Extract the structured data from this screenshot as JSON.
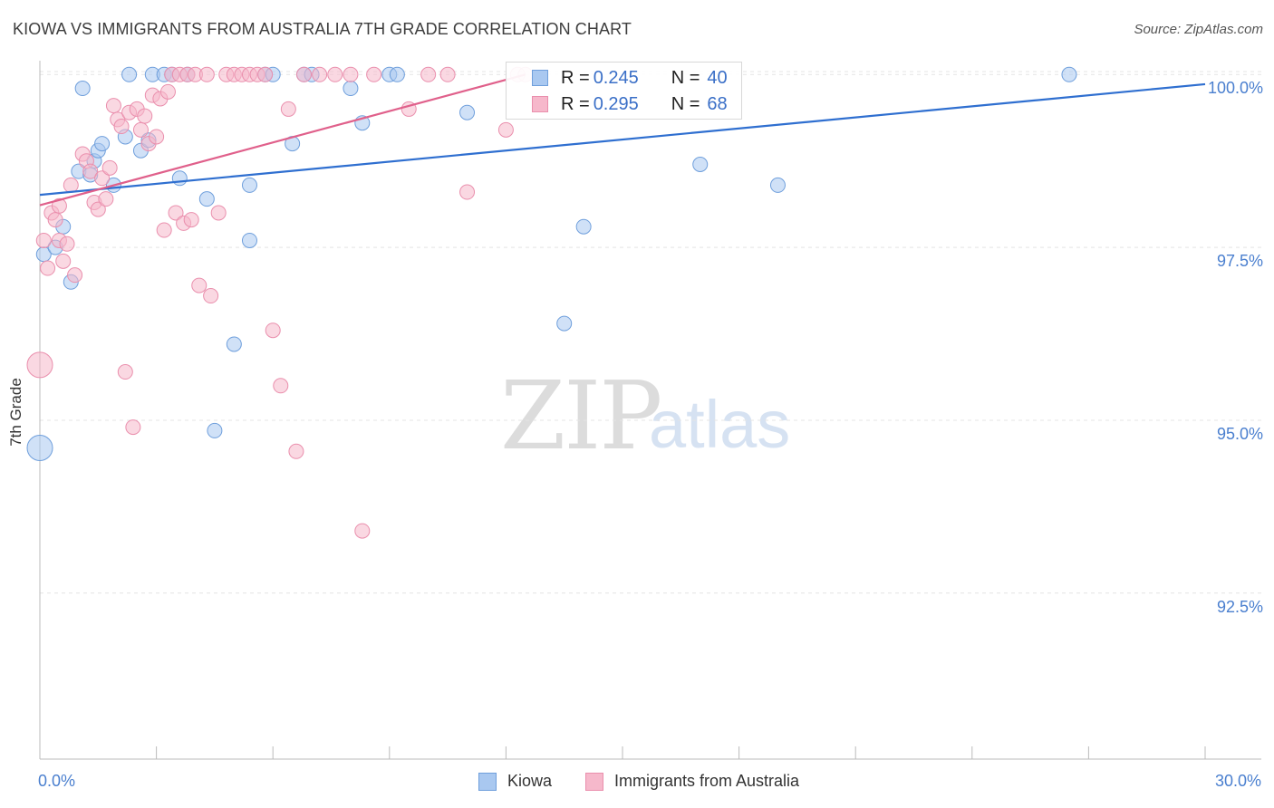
{
  "header": {
    "title": "KIOWA VS IMMIGRANTS FROM AUSTRALIA 7TH GRADE CORRELATION CHART",
    "source": "Source: ZipAtlas.com"
  },
  "watermark": {
    "zip": "ZIP",
    "atlas": "atlas"
  },
  "colors": {
    "kiowa_fill": "#a9c8f0",
    "kiowa_stroke": "#6f9fdc",
    "kiowa_line": "#2f6fd0",
    "aus_fill": "#f6b8cb",
    "aus_stroke": "#ea8fad",
    "aus_line": "#e0608b",
    "tick_text": "#4a7fcf",
    "grid": "#e4e4e4"
  },
  "stats": [
    {
      "r_label": "R = ",
      "r_value": "0.245",
      "n_label": "N = ",
      "n_value": "40"
    },
    {
      "r_label": "R = ",
      "r_value": "0.295",
      "n_label": "N = ",
      "n_value": "68"
    }
  ],
  "legend": [
    {
      "label": "Kiowa"
    },
    {
      "label": "Immigrants from Australia"
    }
  ],
  "chart_data": {
    "type": "scatter",
    "title": "KIOWA VS IMMIGRANTS FROM AUSTRALIA 7TH GRADE CORRELATION CHART",
    "xlabel": "",
    "ylabel": "7th Grade",
    "xlim": [
      0,
      30
    ],
    "ylim": [
      90.1,
      100.2
    ],
    "x_tick_labels": [
      "0.0%",
      "30.0%"
    ],
    "y_ticks": [
      92.5,
      95.0,
      97.5,
      100.0
    ],
    "y_tick_labels": [
      "92.5%",
      "95.0%",
      "97.5%",
      "100.0%"
    ],
    "grid": true,
    "series": [
      {
        "name": "Kiowa",
        "r": 0.245,
        "n": 40,
        "trend": {
          "x": [
            0,
            30
          ],
          "y": [
            98.26,
            99.86
          ]
        },
        "points": [
          {
            "x": 0.0,
            "y": 94.6,
            "big": true
          },
          {
            "x": 0.1,
            "y": 97.4
          },
          {
            "x": 0.4,
            "y": 97.5
          },
          {
            "x": 0.6,
            "y": 97.8
          },
          {
            "x": 0.8,
            "y": 97.0
          },
          {
            "x": 1.0,
            "y": 98.6
          },
          {
            "x": 1.1,
            "y": 99.8
          },
          {
            "x": 1.3,
            "y": 98.55
          },
          {
            "x": 1.4,
            "y": 98.75
          },
          {
            "x": 1.5,
            "y": 98.9
          },
          {
            "x": 1.6,
            "y": 99.0
          },
          {
            "x": 1.9,
            "y": 98.4
          },
          {
            "x": 2.2,
            "y": 99.1
          },
          {
            "x": 2.3,
            "y": 100.0
          },
          {
            "x": 2.6,
            "y": 98.9
          },
          {
            "x": 2.8,
            "y": 99.05
          },
          {
            "x": 2.9,
            "y": 100.0
          },
          {
            "x": 3.2,
            "y": 100.0
          },
          {
            "x": 3.4,
            "y": 100.0
          },
          {
            "x": 3.6,
            "y": 98.5
          },
          {
            "x": 3.8,
            "y": 100.0
          },
          {
            "x": 4.3,
            "y": 98.2
          },
          {
            "x": 4.5,
            "y": 94.85
          },
          {
            "x": 5.0,
            "y": 96.1
          },
          {
            "x": 5.4,
            "y": 98.4
          },
          {
            "x": 5.4,
            "y": 97.6
          },
          {
            "x": 5.8,
            "y": 100.0
          },
          {
            "x": 6.0,
            "y": 100.0
          },
          {
            "x": 6.5,
            "y": 99.0
          },
          {
            "x": 6.8,
            "y": 100.0
          },
          {
            "x": 7.0,
            "y": 100.0
          },
          {
            "x": 8.0,
            "y": 99.8
          },
          {
            "x": 8.3,
            "y": 99.3
          },
          {
            "x": 9.0,
            "y": 100.0
          },
          {
            "x": 9.2,
            "y": 100.0
          },
          {
            "x": 11.0,
            "y": 99.45
          },
          {
            "x": 13.5,
            "y": 96.4
          },
          {
            "x": 14.0,
            "y": 97.8
          },
          {
            "x": 17.0,
            "y": 98.7
          },
          {
            "x": 19.0,
            "y": 98.4
          },
          {
            "x": 26.5,
            "y": 100.0
          }
        ]
      },
      {
        "name": "Immigrants from Australia",
        "r": 0.295,
        "n": 68,
        "trend": {
          "x": [
            0,
            12.5
          ],
          "y": [
            98.11,
            100.0
          ]
        },
        "points": [
          {
            "x": 0.0,
            "y": 95.8,
            "big": true
          },
          {
            "x": 0.1,
            "y": 97.6
          },
          {
            "x": 0.2,
            "y": 97.2
          },
          {
            "x": 0.3,
            "y": 98.0
          },
          {
            "x": 0.4,
            "y": 97.9
          },
          {
            "x": 0.5,
            "y": 97.6
          },
          {
            "x": 0.5,
            "y": 98.1
          },
          {
            "x": 0.6,
            "y": 97.3
          },
          {
            "x": 0.7,
            "y": 97.55
          },
          {
            "x": 0.8,
            "y": 98.4
          },
          {
            "x": 0.9,
            "y": 97.1
          },
          {
            "x": 1.1,
            "y": 98.85
          },
          {
            "x": 1.2,
            "y": 98.75
          },
          {
            "x": 1.3,
            "y": 98.6
          },
          {
            "x": 1.4,
            "y": 98.15
          },
          {
            "x": 1.5,
            "y": 98.05
          },
          {
            "x": 1.6,
            "y": 98.5
          },
          {
            "x": 1.7,
            "y": 98.2
          },
          {
            "x": 1.8,
            "y": 98.65
          },
          {
            "x": 1.9,
            "y": 99.55
          },
          {
            "x": 2.0,
            "y": 99.35
          },
          {
            "x": 2.1,
            "y": 99.25
          },
          {
            "x": 2.2,
            "y": 95.7
          },
          {
            "x": 2.3,
            "y": 99.45
          },
          {
            "x": 2.4,
            "y": 94.9
          },
          {
            "x": 2.5,
            "y": 99.5
          },
          {
            "x": 2.6,
            "y": 99.2
          },
          {
            "x": 2.7,
            "y": 99.4
          },
          {
            "x": 2.8,
            "y": 99.0
          },
          {
            "x": 2.9,
            "y": 99.7
          },
          {
            "x": 3.0,
            "y": 99.1
          },
          {
            "x": 3.1,
            "y": 99.65
          },
          {
            "x": 3.2,
            "y": 97.75
          },
          {
            "x": 3.3,
            "y": 99.75
          },
          {
            "x": 3.4,
            "y": 100.0
          },
          {
            "x": 3.5,
            "y": 98.0
          },
          {
            "x": 3.6,
            "y": 100.0
          },
          {
            "x": 3.7,
            "y": 97.85
          },
          {
            "x": 3.8,
            "y": 100.0
          },
          {
            "x": 3.9,
            "y": 97.9
          },
          {
            "x": 4.0,
            "y": 100.0
          },
          {
            "x": 4.1,
            "y": 96.95
          },
          {
            "x": 4.3,
            "y": 100.0
          },
          {
            "x": 4.4,
            "y": 96.8
          },
          {
            "x": 4.6,
            "y": 98.0
          },
          {
            "x": 4.8,
            "y": 100.0
          },
          {
            "x": 5.0,
            "y": 100.0
          },
          {
            "x": 5.2,
            "y": 100.0
          },
          {
            "x": 5.4,
            "y": 100.0
          },
          {
            "x": 5.6,
            "y": 100.0
          },
          {
            "x": 5.8,
            "y": 100.0
          },
          {
            "x": 6.0,
            "y": 96.3
          },
          {
            "x": 6.2,
            "y": 95.5
          },
          {
            "x": 6.4,
            "y": 99.5
          },
          {
            "x": 6.6,
            "y": 94.55
          },
          {
            "x": 6.8,
            "y": 100.0
          },
          {
            "x": 7.2,
            "y": 100.0
          },
          {
            "x": 7.6,
            "y": 100.0
          },
          {
            "x": 8.0,
            "y": 100.0
          },
          {
            "x": 8.3,
            "y": 93.4
          },
          {
            "x": 8.6,
            "y": 100.0
          },
          {
            "x": 9.5,
            "y": 99.5
          },
          {
            "x": 10.0,
            "y": 100.0
          },
          {
            "x": 10.5,
            "y": 100.0
          },
          {
            "x": 11.0,
            "y": 98.3
          },
          {
            "x": 12.0,
            "y": 99.2
          },
          {
            "x": 12.3,
            "y": 100.0
          },
          {
            "x": 12.5,
            "y": 100.0
          }
        ]
      }
    ]
  }
}
